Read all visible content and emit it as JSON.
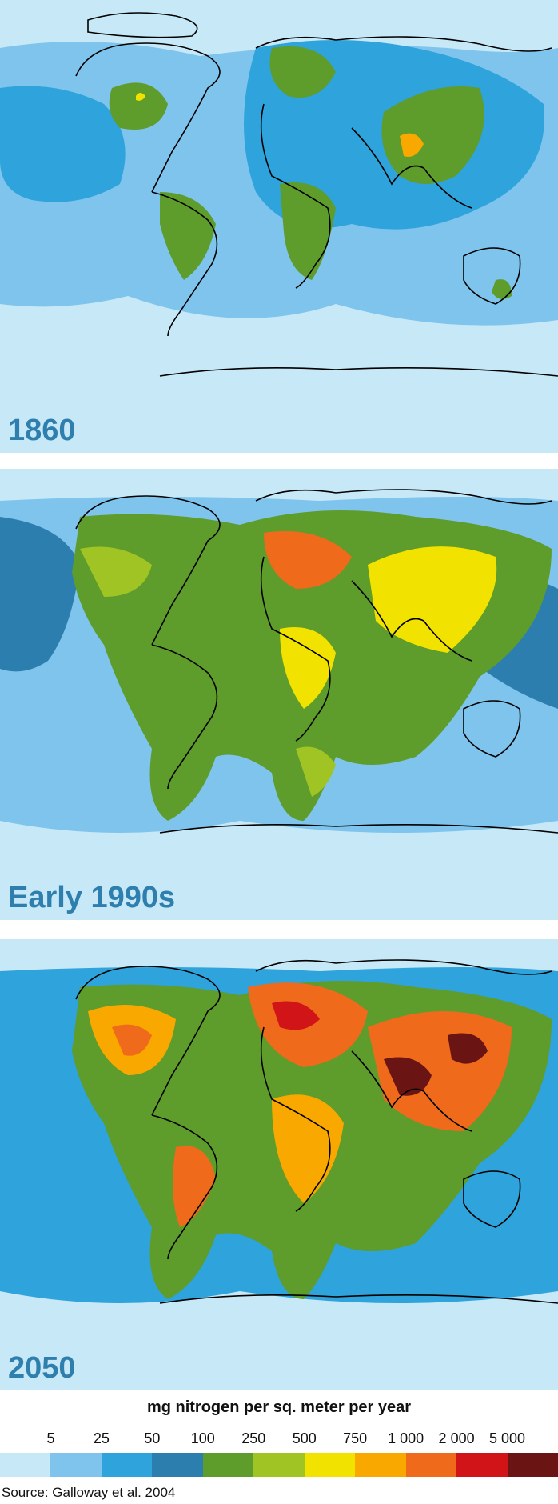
{
  "panels": [
    {
      "label": "1860"
    },
    {
      "label": "Early 1990s"
    },
    {
      "label": "2050"
    }
  ],
  "legend": {
    "title": "mg nitrogen per sq. meter per year",
    "ticks": [
      "5",
      "25",
      "50",
      "100",
      "250",
      "500",
      "750",
      "1 000",
      "2 000",
      "5 000"
    ],
    "colors": [
      "#c6e8f7",
      "#7fc4ec",
      "#2fa3dc",
      "#2c7eaf",
      "#5e9c2c",
      "#9fc424",
      "#f2e200",
      "#f9a800",
      "#ef6a1a",
      "#d01418",
      "#6a1414"
    ]
  },
  "source": "Source: Galloway et al. 2004"
}
